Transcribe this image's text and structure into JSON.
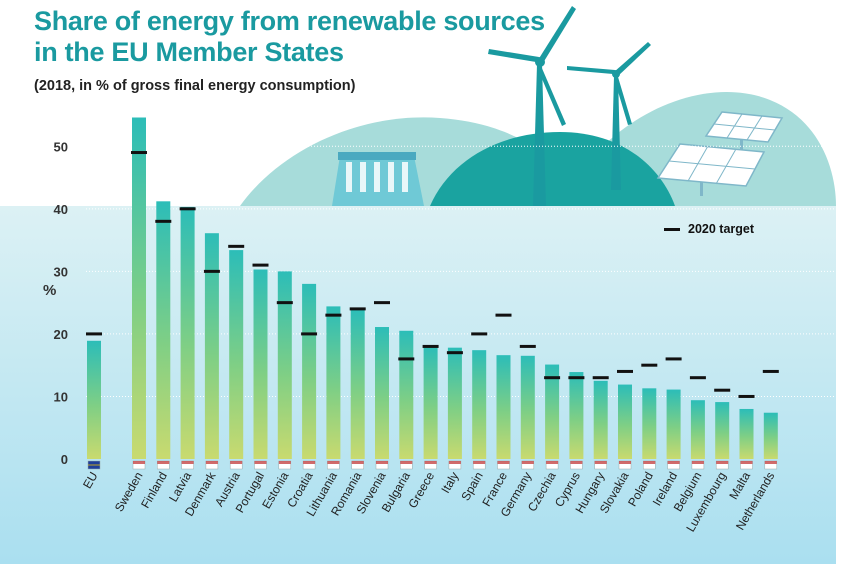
{
  "header": {
    "title_line1": "Share of energy from renewable sources",
    "title_line2": "in the EU Member States",
    "subtitle": "(2018, in % of gross final energy consumption)"
  },
  "legend": {
    "target_label": "2020 target"
  },
  "colors": {
    "title": "#1a9aa0",
    "bar_top": "#2cbdb8",
    "bar_mid": "#7fcf85",
    "bar_bottom": "#c9da6f",
    "target_marker": "#111111",
    "plot_bg_top": "#d9f0f3",
    "plot_bg_bottom": "#aee0f0",
    "hills": "#9fd9d6"
  },
  "icons": [
    "wind-turbine-icon",
    "solar-panel-icon",
    "hydro-dam-icon",
    "flag-icon"
  ],
  "chart_data": {
    "type": "bar",
    "title": "Share of energy from renewable sources in the EU Member States",
    "subtitle": "(2018, in % of gross final energy consumption)",
    "ylabel": "%",
    "ylim": [
      0,
      55
    ],
    "yticks": [
      0,
      10,
      20,
      30,
      40,
      50
    ],
    "grid": true,
    "legend": "right",
    "categories": [
      "EU",
      "Sweden",
      "Finland",
      "Latvia",
      "Denmark",
      "Austria",
      "Portugal",
      "Estonia",
      "Croatia",
      "Lithuania",
      "Romania",
      "Slovenia",
      "Bulgaria",
      "Greece",
      "Italy",
      "Spain",
      "France",
      "Germany",
      "Czechia",
      "Cyprus",
      "Hungary",
      "Slovakia",
      "Poland",
      "Ireland",
      "Belgium",
      "Luxembourg",
      "Malta",
      "Netherlands"
    ],
    "series": [
      {
        "name": "",
        "values": [
          18.9,
          54.6,
          41.2,
          40.3,
          36.1,
          33.4,
          30.3,
          30.0,
          28.0,
          24.4,
          23.9,
          21.1,
          20.5,
          18.0,
          17.8,
          17.4,
          16.6,
          16.5,
          15.1,
          13.9,
          12.5,
          11.9,
          11.3,
          11.1,
          9.4,
          9.1,
          8.0,
          7.4
        ]
      },
      {
        "name": "2020 target",
        "values": [
          20,
          49,
          38,
          40,
          30,
          34,
          31,
          25,
          20,
          23,
          24,
          25,
          16,
          18,
          17,
          20,
          23,
          18,
          13,
          13,
          13,
          14,
          15,
          16,
          13,
          11,
          10,
          14
        ]
      }
    ]
  }
}
